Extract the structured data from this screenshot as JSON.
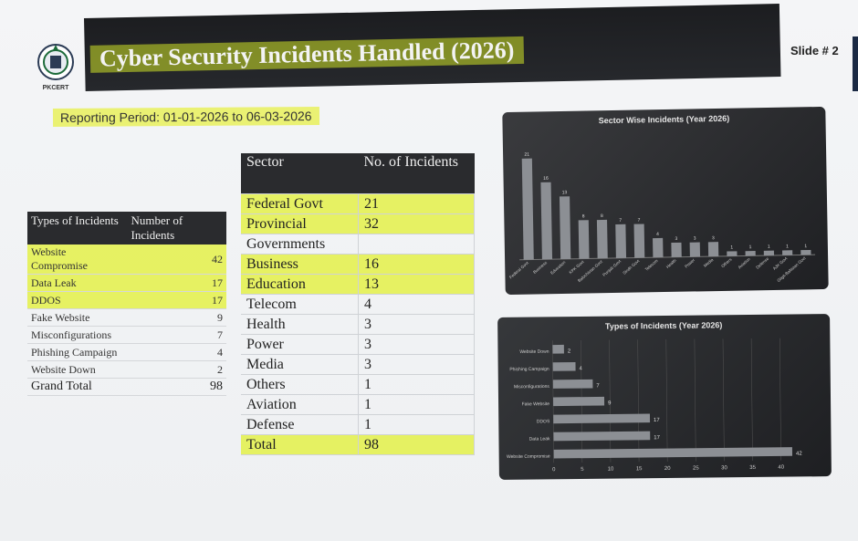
{
  "header": {
    "title": "Cyber Security Incidents Handled (2026)",
    "slide_label": "Slide # 2",
    "logo_text": "PKCERT"
  },
  "reporting": {
    "label": "Reporting Period: ",
    "value": "01-01-2026 to 06-03-2026"
  },
  "types_table": {
    "headers": [
      "Types of Incidents",
      "Number of Incidents"
    ],
    "rows": [
      {
        "type": "Website Compromise",
        "count": "42",
        "highlight": true
      },
      {
        "type": "Data Leak",
        "count": "17",
        "highlight": true
      },
      {
        "type": "DDOS",
        "count": "17",
        "highlight": true
      },
      {
        "type": "Fake Website",
        "count": "9",
        "highlight": false
      },
      {
        "type": "Misconfigurations",
        "count": "7",
        "highlight": false
      },
      {
        "type": "Phishing Campaign",
        "count": "4",
        "highlight": false
      },
      {
        "type": "Website Down",
        "count": "2",
        "highlight": false
      }
    ],
    "total_label": "Grand Total",
    "total_value": "98"
  },
  "sector_table": {
    "headers": [
      "Sector",
      "No. of Incidents"
    ],
    "rows": [
      {
        "sector": "Federal Govt",
        "count": "21",
        "highlight": true
      },
      {
        "sector": "Provincial",
        "count": "32",
        "highlight": true
      },
      {
        "sector": "Governments",
        "count": "",
        "highlight": false
      },
      {
        "sector": "Business",
        "count": "16",
        "highlight": true
      },
      {
        "sector": "Education",
        "count": "13",
        "highlight": true
      },
      {
        "sector": "Telecom",
        "count": "4",
        "highlight": false
      },
      {
        "sector": "Health",
        "count": "3",
        "highlight": false
      },
      {
        "sector": "Power",
        "count": "3",
        "highlight": false
      },
      {
        "sector": "Media",
        "count": "3",
        "highlight": false
      },
      {
        "sector": "Others",
        "count": "1",
        "highlight": false
      },
      {
        "sector": "Aviation",
        "count": "1",
        "highlight": false
      },
      {
        "sector": "Defense",
        "count": "1",
        "highlight": false
      }
    ],
    "total_label": "Total",
    "total_value": "98"
  },
  "colors": {
    "highlight": "#e1f032",
    "header_dark": "#2a2b2e",
    "bar": "#8c8f94"
  },
  "chart_data": [
    {
      "type": "bar",
      "title": "Sector Wise Incidents (Year 2026)",
      "categories": [
        "Federal Govt",
        "Business",
        "Education",
        "KPK Govt",
        "Balochistan Govt",
        "Punjab Govt",
        "Sindh Govt",
        "Telecom",
        "Health",
        "Power",
        "Media",
        "Others",
        "Aviation",
        "Defense",
        "AJK Govt",
        "Gilgit-Baltistan Govt"
      ],
      "values": [
        21,
        16,
        13,
        8,
        8,
        7,
        7,
        4,
        3,
        3,
        3,
        1,
        1,
        1,
        1,
        1
      ],
      "ylim": [
        0,
        25
      ],
      "grid": false
    },
    {
      "type": "bar",
      "orientation": "horizontal",
      "title": "Types of Incidents (Year 2026)",
      "categories": [
        "Website Down",
        "Phishing Campaign",
        "Misconfigurations",
        "Fake Website",
        "DDOS",
        "Data Leak",
        "Website Compromise"
      ],
      "values": [
        2,
        4,
        7,
        9,
        17,
        17,
        42
      ],
      "xticks": [
        "0",
        "5",
        "10",
        "15",
        "20",
        "25",
        "30",
        "35",
        "40"
      ],
      "xlim": [
        0,
        45
      ],
      "grid": true
    }
  ]
}
